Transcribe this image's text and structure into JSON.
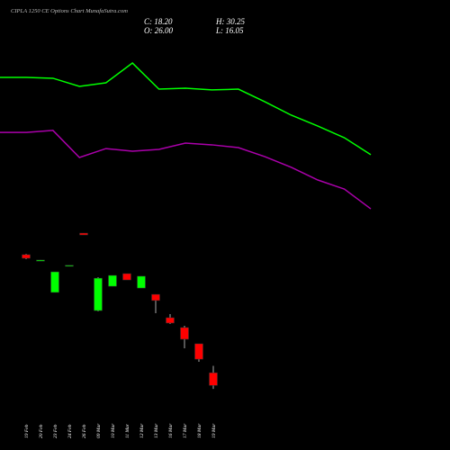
{
  "chart_data": [
    {
      "type": "candlestick",
      "title": "CIPLA 1250 CE Options Chart MunafaSutra.com",
      "ohlc_labels": [
        "C: 18.20",
        "O: 26.00",
        "H: 30.25",
        "L: 16.05"
      ],
      "categories": [
        "19 Feb",
        "20 Feb",
        "23 Feb",
        "24 Feb",
        "26 Feb",
        "09 Mar",
        "10 Mar",
        "11 Mar",
        "12 Mar",
        "13 Mar",
        "16 Mar",
        "17 Mar",
        "18 Mar",
        "19 Mar"
      ],
      "open": [
        98.9,
        95.0,
        75.6,
        92.0,
        112.2,
        64.4,
        79.4,
        87.2,
        78.3,
        74.4,
        60.0,
        53.9,
        43.9,
        26.0
      ],
      "high": [
        99.4,
        95.6,
        88.3,
        92.4,
        112.2,
        85.0,
        86.1,
        87.2,
        85.6,
        74.4,
        62.2,
        55.0,
        43.9,
        30.25
      ],
      "low": [
        96.1,
        95.0,
        75.6,
        92.0,
        111.1,
        63.9,
        79.4,
        83.3,
        78.3,
        62.8,
        56.1,
        41.1,
        32.8,
        16.05
      ],
      "close": [
        96.7,
        95.6,
        88.3,
        92.4,
        111.1,
        84.4,
        86.1,
        83.3,
        85.6,
        70.6,
        56.7,
        46.7,
        34.4,
        18.2
      ],
      "up_color": "#00ff00",
      "down_color": "#ff0000",
      "ylim": [
        0,
        250
      ]
    },
    {
      "type": "line",
      "categories": [
        null,
        null,
        null,
        null,
        null,
        null,
        null,
        null,
        null,
        null,
        null,
        null,
        null,
        null,
        null
      ],
      "series": [
        {
          "color": "#00ff00",
          "values": [
            208.3,
            208.3,
            207.8,
            202.8,
            205.0,
            217.2,
            201.1,
            201.7,
            200.6,
            201.1,
            193.3,
            185.0,
            178.3,
            171.1,
            160.6
          ]
        },
        {
          "color": "#aa00aa",
          "values": [
            174.4,
            174.4,
            175.6,
            158.9,
            164.4,
            162.8,
            163.9,
            167.8,
            166.7,
            165.0,
            159.4,
            152.8,
            145.0,
            139.4,
            127.2
          ]
        }
      ],
      "ylim": [
        0,
        250
      ]
    }
  ]
}
